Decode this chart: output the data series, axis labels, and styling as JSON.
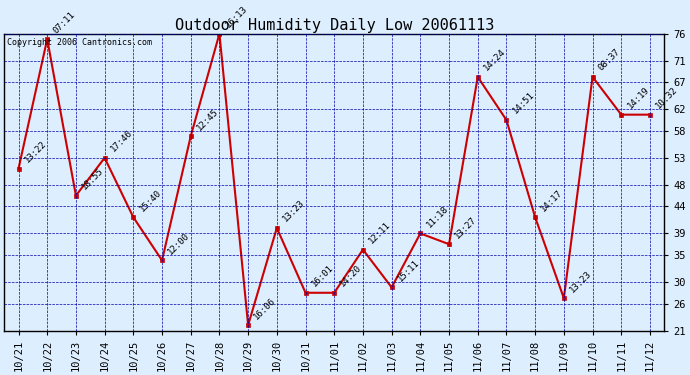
{
  "title": "Outdoor Humidity Daily Low 20061113",
  "copyright": "Copyright 2006 Cantronics.com",
  "x_labels": [
    "10/21",
    "10/22",
    "10/23",
    "10/24",
    "10/25",
    "10/26",
    "10/27",
    "10/28",
    "10/29",
    "10/30",
    "10/31",
    "11/01",
    "11/02",
    "11/03",
    "11/04",
    "11/05",
    "11/06",
    "11/07",
    "11/08",
    "11/09",
    "11/10",
    "11/11",
    "11/12"
  ],
  "y_values": [
    51,
    75,
    46,
    53,
    42,
    34,
    57,
    76,
    22,
    40,
    28,
    28,
    36,
    29,
    39,
    37,
    68,
    60,
    42,
    27,
    68,
    61,
    61
  ],
  "annotations": [
    "13:22",
    "07:11",
    "18:55",
    "17:46",
    "15:40",
    "12:00",
    "12:45",
    "16:13",
    "16:06",
    "13:23",
    "16:01",
    "14:20",
    "12:11",
    "15:11",
    "11:18",
    "13:27",
    "14:24",
    "14:51",
    "14:17",
    "13:23",
    "08:37",
    "14:19",
    "10:32"
  ],
  "line_color": "#CC0000",
  "marker_color": "#CC0000",
  "bg_color": "#DDEEFF",
  "plot_bg_color": "#DDEEFF",
  "grid_color": "#0000AA",
  "title_fontsize": 11,
  "annot_fontsize": 6.5,
  "tick_fontsize": 7.5,
  "copyright_fontsize": 6,
  "ylim_min": 21,
  "ylim_max": 76,
  "yticks": [
    21,
    26,
    30,
    35,
    39,
    44,
    48,
    53,
    58,
    62,
    67,
    71,
    76
  ],
  "fig_width": 6.9,
  "fig_height": 3.75,
  "dpi": 100
}
